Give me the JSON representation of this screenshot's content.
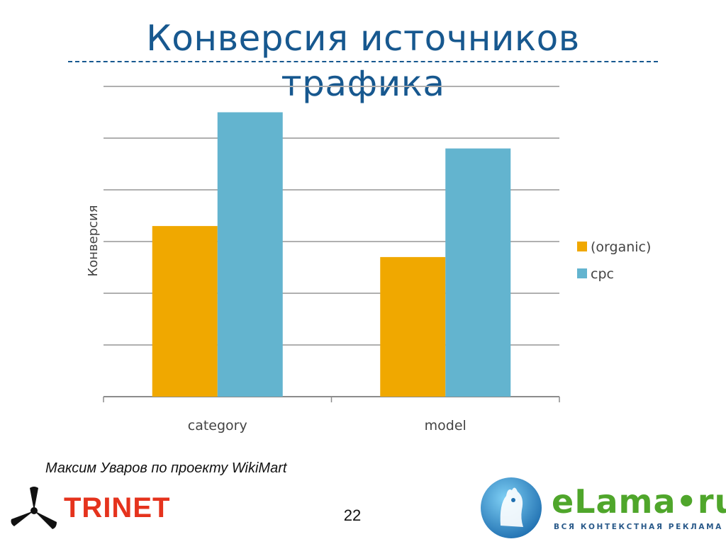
{
  "slide": {
    "title": "Конверсия источников трафика",
    "author": "Максим Уваров по проекту WikiMart",
    "page_number": "22"
  },
  "logos": {
    "trinet": {
      "text": "TRINET",
      "color": "#e5331d"
    },
    "elama": {
      "text": "eLama•ru",
      "tagline": "ВСЯ КОНТЕКСТНАЯ РЕКЛАМА",
      "color": "#4fa62b"
    }
  },
  "chart_data": {
    "type": "bar",
    "title": "",
    "xlabel": "",
    "ylabel": "Конверсия",
    "categories": [
      "category",
      "model"
    ],
    "series": [
      {
        "name": "(organic)",
        "color": "#f0a800",
        "values": [
          3.3,
          2.7
        ]
      },
      {
        "name": "cpc",
        "color": "#63b4cf",
        "values": [
          5.5,
          4.8
        ]
      }
    ],
    "ylim": [
      0,
      6
    ],
    "grid": true,
    "y_tick_labels_visible": false,
    "legend_position": "right"
  }
}
